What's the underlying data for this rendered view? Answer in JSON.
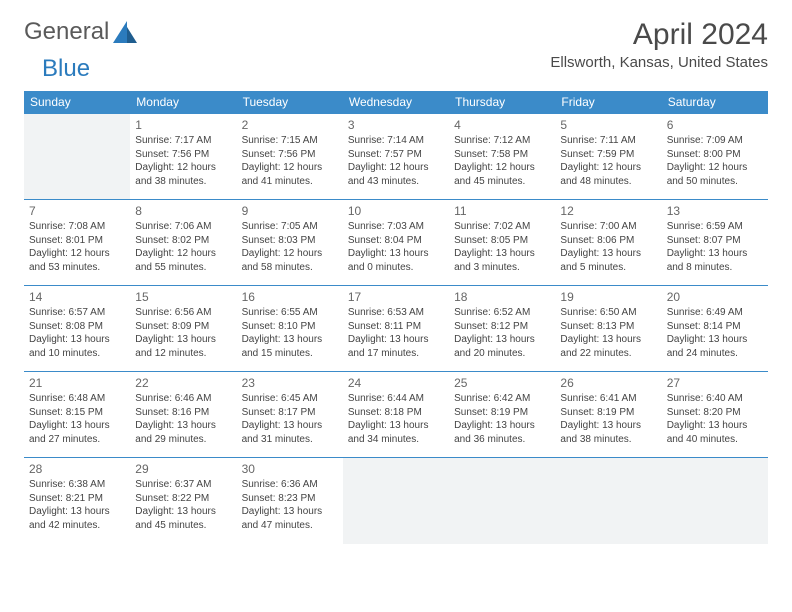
{
  "logo": {
    "text_general": "General",
    "text_blue": "Blue"
  },
  "title": "April 2024",
  "location": "Ellsworth, Kansas, United States",
  "colors": {
    "header_bg": "#3b8bc9",
    "header_text": "#ffffff",
    "border": "#3b8bc9",
    "empty_bg": "#f1f3f4",
    "body_text": "#444444",
    "logo_blue": "#2b7bbd",
    "logo_gray": "#5a5a5a"
  },
  "weekdays": [
    "Sunday",
    "Monday",
    "Tuesday",
    "Wednesday",
    "Thursday",
    "Friday",
    "Saturday"
  ],
  "weeks": [
    [
      null,
      {
        "n": "1",
        "sunrise": "7:17 AM",
        "sunset": "7:56 PM",
        "daylight": "12 hours and 38 minutes."
      },
      {
        "n": "2",
        "sunrise": "7:15 AM",
        "sunset": "7:56 PM",
        "daylight": "12 hours and 41 minutes."
      },
      {
        "n": "3",
        "sunrise": "7:14 AM",
        "sunset": "7:57 PM",
        "daylight": "12 hours and 43 minutes."
      },
      {
        "n": "4",
        "sunrise": "7:12 AM",
        "sunset": "7:58 PM",
        "daylight": "12 hours and 45 minutes."
      },
      {
        "n": "5",
        "sunrise": "7:11 AM",
        "sunset": "7:59 PM",
        "daylight": "12 hours and 48 minutes."
      },
      {
        "n": "6",
        "sunrise": "7:09 AM",
        "sunset": "8:00 PM",
        "daylight": "12 hours and 50 minutes."
      }
    ],
    [
      {
        "n": "7",
        "sunrise": "7:08 AM",
        "sunset": "8:01 PM",
        "daylight": "12 hours and 53 minutes."
      },
      {
        "n": "8",
        "sunrise": "7:06 AM",
        "sunset": "8:02 PM",
        "daylight": "12 hours and 55 minutes."
      },
      {
        "n": "9",
        "sunrise": "7:05 AM",
        "sunset": "8:03 PM",
        "daylight": "12 hours and 58 minutes."
      },
      {
        "n": "10",
        "sunrise": "7:03 AM",
        "sunset": "8:04 PM",
        "daylight": "13 hours and 0 minutes."
      },
      {
        "n": "11",
        "sunrise": "7:02 AM",
        "sunset": "8:05 PM",
        "daylight": "13 hours and 3 minutes."
      },
      {
        "n": "12",
        "sunrise": "7:00 AM",
        "sunset": "8:06 PM",
        "daylight": "13 hours and 5 minutes."
      },
      {
        "n": "13",
        "sunrise": "6:59 AM",
        "sunset": "8:07 PM",
        "daylight": "13 hours and 8 minutes."
      }
    ],
    [
      {
        "n": "14",
        "sunrise": "6:57 AM",
        "sunset": "8:08 PM",
        "daylight": "13 hours and 10 minutes."
      },
      {
        "n": "15",
        "sunrise": "6:56 AM",
        "sunset": "8:09 PM",
        "daylight": "13 hours and 12 minutes."
      },
      {
        "n": "16",
        "sunrise": "6:55 AM",
        "sunset": "8:10 PM",
        "daylight": "13 hours and 15 minutes."
      },
      {
        "n": "17",
        "sunrise": "6:53 AM",
        "sunset": "8:11 PM",
        "daylight": "13 hours and 17 minutes."
      },
      {
        "n": "18",
        "sunrise": "6:52 AM",
        "sunset": "8:12 PM",
        "daylight": "13 hours and 20 minutes."
      },
      {
        "n": "19",
        "sunrise": "6:50 AM",
        "sunset": "8:13 PM",
        "daylight": "13 hours and 22 minutes."
      },
      {
        "n": "20",
        "sunrise": "6:49 AM",
        "sunset": "8:14 PM",
        "daylight": "13 hours and 24 minutes."
      }
    ],
    [
      {
        "n": "21",
        "sunrise": "6:48 AM",
        "sunset": "8:15 PM",
        "daylight": "13 hours and 27 minutes."
      },
      {
        "n": "22",
        "sunrise": "6:46 AM",
        "sunset": "8:16 PM",
        "daylight": "13 hours and 29 minutes."
      },
      {
        "n": "23",
        "sunrise": "6:45 AM",
        "sunset": "8:17 PM",
        "daylight": "13 hours and 31 minutes."
      },
      {
        "n": "24",
        "sunrise": "6:44 AM",
        "sunset": "8:18 PM",
        "daylight": "13 hours and 34 minutes."
      },
      {
        "n": "25",
        "sunrise": "6:42 AM",
        "sunset": "8:19 PM",
        "daylight": "13 hours and 36 minutes."
      },
      {
        "n": "26",
        "sunrise": "6:41 AM",
        "sunset": "8:19 PM",
        "daylight": "13 hours and 38 minutes."
      },
      {
        "n": "27",
        "sunrise": "6:40 AM",
        "sunset": "8:20 PM",
        "daylight": "13 hours and 40 minutes."
      }
    ],
    [
      {
        "n": "28",
        "sunrise": "6:38 AM",
        "sunset": "8:21 PM",
        "daylight": "13 hours and 42 minutes."
      },
      {
        "n": "29",
        "sunrise": "6:37 AM",
        "sunset": "8:22 PM",
        "daylight": "13 hours and 45 minutes."
      },
      {
        "n": "30",
        "sunrise": "6:36 AM",
        "sunset": "8:23 PM",
        "daylight": "13 hours and 47 minutes."
      },
      null,
      null,
      null,
      null
    ]
  ],
  "labels": {
    "sunrise_prefix": "Sunrise: ",
    "sunset_prefix": "Sunset: ",
    "daylight_prefix": "Daylight: "
  }
}
